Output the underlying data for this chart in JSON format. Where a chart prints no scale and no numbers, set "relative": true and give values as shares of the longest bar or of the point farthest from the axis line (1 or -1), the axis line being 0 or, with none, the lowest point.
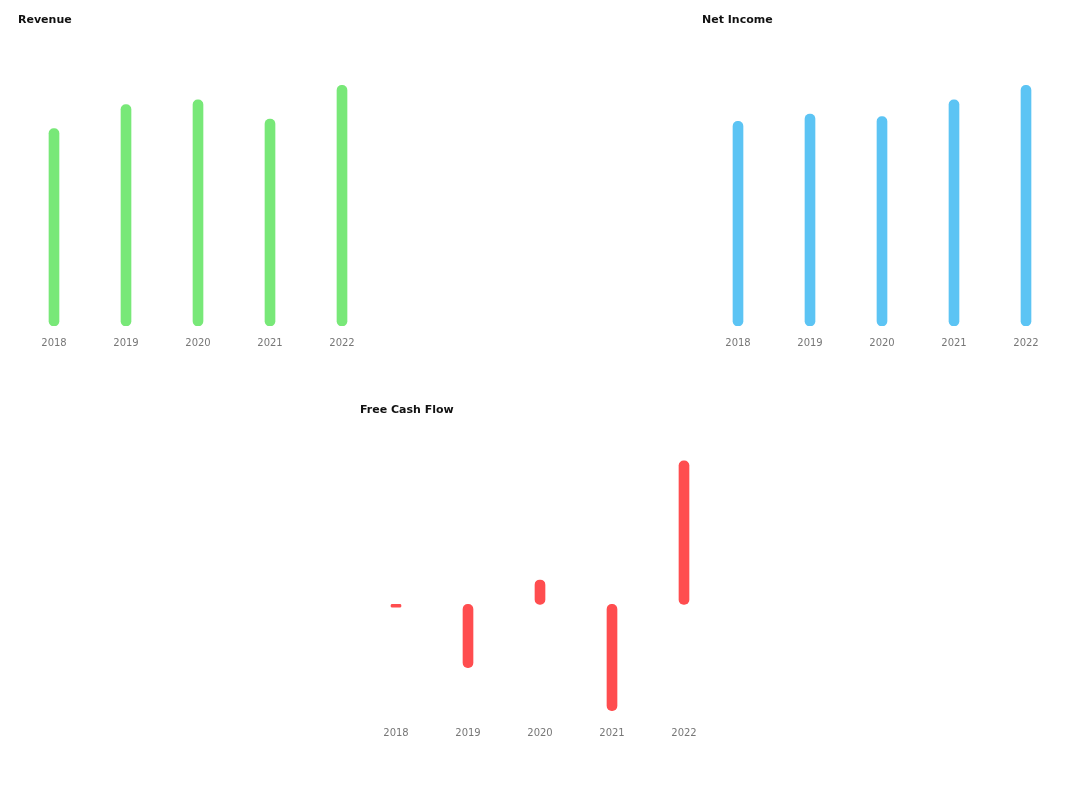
{
  "chart_data": [
    {
      "type": "bar",
      "title": "Revenue",
      "categories": [
        "2018",
        "2019",
        "2020",
        "2021",
        "2022"
      ],
      "values": [
        0.82,
        0.92,
        0.94,
        0.86,
        1
      ],
      "color": "#78e878",
      "relative": true
    },
    {
      "type": "bar",
      "title": "Net Income",
      "categories": [
        "2018",
        "2019",
        "2020",
        "2021",
        "2022"
      ],
      "values": [
        0.85,
        0.88,
        0.87,
        0.94,
        1
      ],
      "color": "#5cc4f4",
      "relative": true
    },
    {
      "type": "bar",
      "title": "Free Cash Flow",
      "categories": [
        "2018",
        "2019",
        "2020",
        "2021",
        "2022"
      ],
      "values": [
        -0.02,
        -0.44,
        0.17,
        -0.74,
        1
      ],
      "color": "#ff4d4f",
      "relative": true
    }
  ]
}
